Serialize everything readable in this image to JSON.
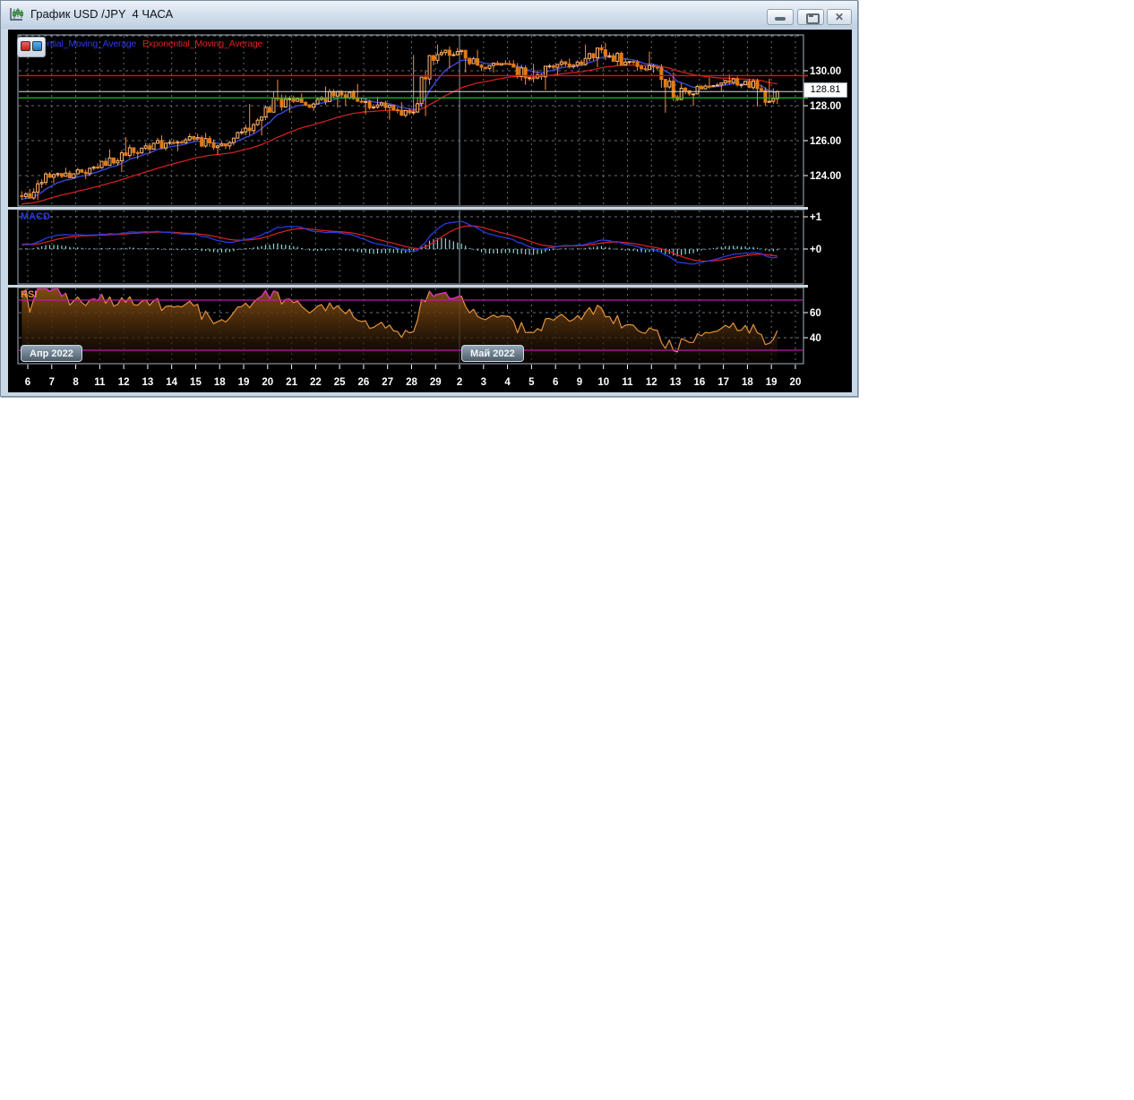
{
  "window": {
    "title": "График USD /JPY  4 ЧАСА",
    "icon": "candlestick-chart-icon",
    "controls": {
      "minimize": "minimize-icon",
      "maximize": "maximize-icon",
      "close": "close-icon",
      "close_glyph": "✕"
    }
  },
  "legend": {
    "ma_fast_label": "Exponential_Moving_Average",
    "ma_slow_label": "Exponential_Moving_Average",
    "buttons": [
      "red-indicator-button",
      "blue-indicator-button"
    ]
  },
  "chart_data": {
    "type": "candlestick",
    "instrument": "USD/JPY",
    "timeframe": "4 ЧАСА",
    "candles_per_day": 6,
    "x_labels": [
      "6",
      "7",
      "8",
      "11",
      "12",
      "13",
      "14",
      "15",
      "18",
      "19",
      "20",
      "21",
      "22",
      "25",
      "26",
      "27",
      "28",
      "29",
      "2",
      "3",
      "4",
      "5",
      "6",
      "9",
      "10",
      "11",
      "12",
      "13",
      "16",
      "17",
      "18",
      "19",
      "20"
    ],
    "month_markers": [
      {
        "label": "Апр 2022",
        "day_index": 0
      },
      {
        "label": "Май 2022",
        "day_index": 18
      }
    ],
    "separator_day_index": 18,
    "price_axis": {
      "tick_labels": [
        "130.00",
        "128.00",
        "126.00",
        "124.00"
      ],
      "tick_values": [
        130,
        128,
        126,
        124
      ],
      "grid_values": [
        132,
        130,
        128,
        126,
        124
      ],
      "current_price_label": "128.81",
      "current_price": 128.81
    },
    "levels": {
      "red_line": 129.72,
      "green_line": 128.45,
      "white_line": 128.81
    },
    "lead_in": [
      [
        122.85,
        123.1,
        122.6,
        122.8
      ],
      [
        122.8,
        123.05,
        122.65,
        122.95
      ]
    ],
    "daily_ohlc": [
      [
        122.95,
        124.2,
        122.6,
        123.9
      ],
      [
        123.9,
        124.45,
        123.55,
        124.1
      ],
      [
        124.1,
        124.7,
        123.8,
        124.45
      ],
      [
        124.45,
        125.5,
        124.2,
        125.3
      ],
      [
        125.3,
        126.2,
        124.95,
        125.7
      ],
      [
        125.7,
        126.3,
        125.25,
        125.9
      ],
      [
        125.9,
        126.4,
        125.4,
        126.1
      ],
      [
        126.1,
        126.45,
        125.2,
        125.7
      ],
      [
        125.7,
        126.7,
        125.5,
        126.5
      ],
      [
        126.5,
        128.1,
        126.3,
        127.9
      ],
      [
        127.9,
        129.5,
        127.6,
        128.4
      ],
      [
        128.4,
        128.7,
        127.7,
        128.1
      ],
      [
        128.1,
        129.1,
        127.9,
        128.8
      ],
      [
        128.8,
        129.25,
        128.0,
        128.2
      ],
      [
        128.2,
        128.5,
        127.5,
        127.9
      ],
      [
        127.9,
        128.2,
        127.2,
        127.6
      ],
      [
        127.6,
        130.9,
        127.4,
        130.6
      ],
      [
        130.6,
        131.5,
        130.15,
        131.1
      ],
      [
        131.1,
        131.2,
        129.9,
        130.2
      ],
      [
        130.2,
        130.6,
        129.9,
        130.4
      ],
      [
        130.4,
        130.6,
        129.2,
        129.6
      ],
      [
        129.6,
        130.4,
        128.9,
        130.2
      ],
      [
        130.2,
        130.7,
        129.7,
        130.5
      ],
      [
        130.5,
        131.5,
        130.2,
        131.2
      ],
      [
        131.2,
        131.6,
        130.3,
        130.5
      ],
      [
        130.5,
        131.1,
        130.0,
        130.3
      ],
      [
        130.3,
        130.4,
        127.6,
        128.5
      ],
      [
        128.5,
        129.3,
        128.0,
        129.1
      ],
      [
        129.1,
        129.6,
        128.8,
        129.3
      ],
      [
        129.3,
        129.8,
        129.0,
        129.4
      ],
      [
        129.4,
        129.55,
        127.95,
        128.25
      ],
      [
        128.25,
        129.0,
        128.1,
        128.81
      ],
      [
        128.9,
        129.0,
        128.6,
        128.81
      ]
    ],
    "partial_days": {
      "31": 2,
      "32": 0
    },
    "warmup": {
      "bars": 40,
      "start": 121.9,
      "end": 122.7,
      "jitter": 0.12
    },
    "macd": {
      "label": "MACD",
      "axis_tick_labels": [
        "+1",
        "+0"
      ],
      "axis_tick_values": [
        1,
        0
      ],
      "fast_period": 12,
      "slow_period": 26,
      "signal_period": 9
    },
    "rsi": {
      "label": "RSI",
      "axis_tick_labels": [
        "60",
        "40"
      ],
      "axis_tick_values": [
        60,
        40
      ],
      "period": 14,
      "upper_level": 70,
      "lower_level": 30
    },
    "ma_fast_period": 10,
    "ma_slow_period": 40
  },
  "colors": {
    "candle_up_stroke": "#ffb875",
    "candle_down_fill": "#e07b16",
    "wick": "#f09040",
    "ma_fast": "#3848d8",
    "ma_slow": "#cf1f1f",
    "macd_line": "#2a3ae0",
    "macd_signal": "#d02020",
    "macd_hist": "#8fd8d8",
    "rsi_line": "#e2913c",
    "rsi_overbought": "#e028c8",
    "rsi_level": "#c315ad",
    "level_red": "#dd1111",
    "level_green": "#19c327",
    "level_white": "#dcdcdc",
    "grid": "#76818e",
    "month_separator": "#8b98a6",
    "panel_border": "#a8b4c2",
    "axis_text": "#ffffff"
  }
}
